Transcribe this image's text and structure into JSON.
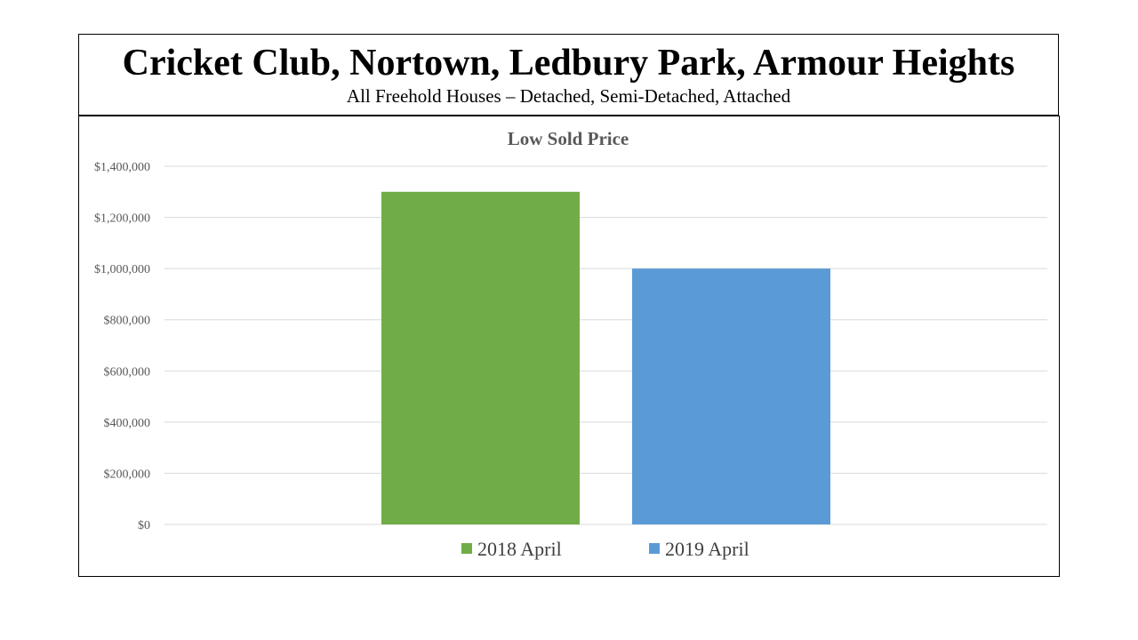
{
  "header": {
    "title": "Cricket Club, Nortown, Ledbury Park, Armour Heights",
    "subtitle": "All Freehold Houses – Detached, Semi-Detached, Attached"
  },
  "chart_data": {
    "type": "bar",
    "title": "Low Sold Price",
    "xlabel": "",
    "ylabel": "",
    "ylim": [
      0,
      1400000
    ],
    "y_ticks": [
      0,
      200000,
      400000,
      600000,
      800000,
      1000000,
      1200000,
      1400000
    ],
    "y_tick_labels": [
      "$0",
      "$200,000",
      "$400,000",
      "$600,000",
      "$800,000",
      "$1,000,000",
      "$1,200,000",
      "$1,400,000"
    ],
    "grid": true,
    "legend_position": "bottom",
    "series": [
      {
        "name": "2018 April",
        "color": "#70AD47",
        "values": [
          1300000
        ]
      },
      {
        "name": "2019 April",
        "color": "#5B9BD5",
        "values": [
          1000000
        ]
      }
    ]
  }
}
